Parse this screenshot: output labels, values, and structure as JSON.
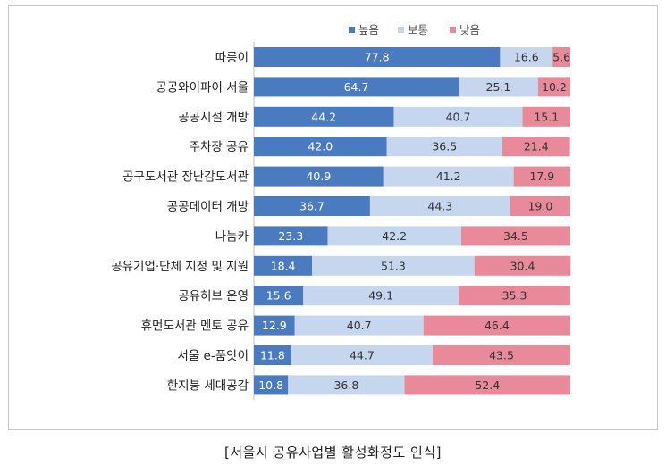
{
  "caption": "[서울시 공유사업별 활성화정도 인식]",
  "chart_data": {
    "type": "bar",
    "orientation": "horizontal",
    "stacked": true,
    "legend_position": "top",
    "xlim": [
      0,
      100
    ],
    "grid": false,
    "categories": [
      "따릉이",
      "공공와이파이 서울",
      "공공시설 개방",
      "주차장 공유",
      "공구도서관 장난감도서관",
      "공공데이터 개방",
      "나눔카",
      "공유기업·단체 지정 및 지원",
      "공유허브 운영",
      "휴먼도서관 멘토 공유",
      "서울 e-품앗이",
      "한지붕 세대공감"
    ],
    "series": [
      {
        "name": "높음",
        "color": "#4a7abf",
        "values": [
          77.8,
          64.7,
          44.2,
          42.0,
          40.9,
          36.7,
          23.3,
          18.4,
          15.6,
          12.9,
          11.8,
          10.8
        ]
      },
      {
        "name": "보통",
        "color": "#c6d6ee",
        "values": [
          16.6,
          25.1,
          40.7,
          36.5,
          41.2,
          44.3,
          42.2,
          51.3,
          49.1,
          40.7,
          44.7,
          36.8
        ]
      },
      {
        "name": "낮음",
        "color": "#e88a9a",
        "values": [
          5.6,
          10.2,
          15.1,
          21.4,
          17.9,
          19.0,
          34.5,
          30.4,
          35.3,
          46.4,
          43.5,
          52.4
        ]
      }
    ],
    "value_label_colors": [
      "#ffffff",
      "#333333",
      "#333333"
    ]
  }
}
